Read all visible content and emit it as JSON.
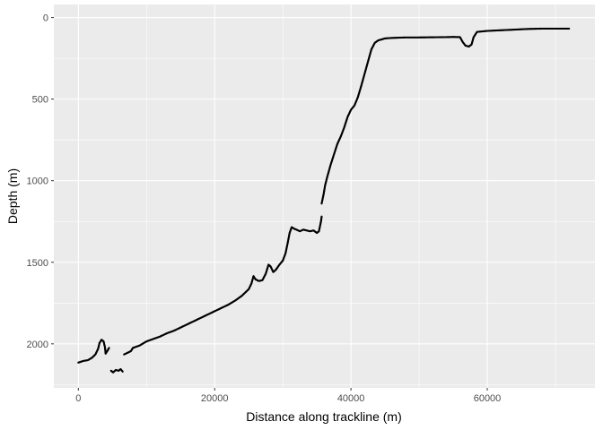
{
  "chart_data": {
    "type": "scatter",
    "xlabel": "Distance along trackline (m)",
    "ylabel": "Depth (m)",
    "xlim": [
      -3600,
      75800
    ],
    "ylim": [
      -80,
      2270
    ],
    "y_reversed": true,
    "x_ticks": [
      0,
      20000,
      40000,
      60000
    ],
    "y_ticks": [
      0,
      500,
      1000,
      1500,
      2000
    ],
    "x_tick_labels": [
      "0",
      "20000",
      "40000",
      "60000"
    ],
    "y_tick_labels": [
      "0",
      "500",
      "1000",
      "1500",
      "2000"
    ],
    "grid": true,
    "panel_background": "#ebebeb",
    "grid_color": "#ffffff",
    "point_color": "#000000",
    "segments": [
      {
        "name": "seg-a",
        "points": [
          [
            0,
            2115
          ],
          [
            700,
            2105
          ],
          [
            1400,
            2100
          ],
          [
            2000,
            2085
          ],
          [
            2500,
            2065
          ],
          [
            2900,
            2030
          ],
          [
            3100,
            1995
          ],
          [
            3400,
            1975
          ],
          [
            3700,
            1985
          ],
          [
            3900,
            2020
          ],
          [
            4000,
            2060
          ],
          [
            4300,
            2040
          ],
          [
            4500,
            2025
          ]
        ]
      },
      {
        "name": "seg-b",
        "points": [
          [
            4800,
            2165
          ],
          [
            5100,
            2175
          ],
          [
            5500,
            2160
          ],
          [
            5900,
            2165
          ],
          [
            6200,
            2155
          ],
          [
            6500,
            2170
          ]
        ]
      },
      {
        "name": "seg-c",
        "points": [
          [
            6700,
            2065
          ],
          [
            7200,
            2055
          ],
          [
            7700,
            2045
          ],
          [
            8000,
            2025
          ],
          [
            9000,
            2010
          ],
          [
            10000,
            1985
          ],
          [
            11000,
            1970
          ],
          [
            12000,
            1955
          ],
          [
            13000,
            1935
          ],
          [
            14000,
            1920
          ],
          [
            15000,
            1900
          ],
          [
            16000,
            1880
          ],
          [
            17000,
            1860
          ],
          [
            18000,
            1840
          ],
          [
            19000,
            1820
          ],
          [
            20000,
            1800
          ],
          [
            21000,
            1780
          ],
          [
            22000,
            1760
          ],
          [
            23000,
            1735
          ],
          [
            24000,
            1705
          ],
          [
            25000,
            1665
          ],
          [
            25400,
            1630
          ],
          [
            25700,
            1585
          ],
          [
            26000,
            1605
          ],
          [
            26500,
            1615
          ],
          [
            27000,
            1610
          ],
          [
            27500,
            1570
          ],
          [
            27900,
            1515
          ],
          [
            28200,
            1525
          ],
          [
            28600,
            1560
          ],
          [
            29000,
            1545
          ],
          [
            29500,
            1515
          ],
          [
            30000,
            1490
          ],
          [
            30400,
            1445
          ],
          [
            30700,
            1385
          ],
          [
            31000,
            1320
          ],
          [
            31300,
            1285
          ],
          [
            31700,
            1295
          ],
          [
            32000,
            1300
          ],
          [
            32500,
            1310
          ],
          [
            33000,
            1300
          ],
          [
            33500,
            1305
          ],
          [
            34000,
            1310
          ],
          [
            34500,
            1305
          ],
          [
            35000,
            1320
          ],
          [
            35300,
            1310
          ],
          [
            35600,
            1250
          ],
          [
            35700,
            1220
          ]
        ]
      },
      {
        "name": "seg-d",
        "points": [
          [
            35700,
            1140
          ],
          [
            36000,
            1080
          ],
          [
            36200,
            1030
          ],
          [
            36500,
            980
          ],
          [
            37000,
            905
          ],
          [
            37500,
            840
          ],
          [
            38000,
            775
          ],
          [
            38500,
            730
          ],
          [
            39000,
            675
          ],
          [
            39500,
            610
          ],
          [
            40000,
            565
          ],
          [
            40500,
            540
          ],
          [
            41000,
            490
          ],
          [
            41500,
            420
          ],
          [
            42000,
            345
          ],
          [
            42500,
            270
          ],
          [
            43000,
            195
          ],
          [
            43500,
            155
          ],
          [
            44000,
            140
          ],
          [
            45000,
            128
          ],
          [
            46000,
            125
          ],
          [
            48000,
            122
          ],
          [
            50000,
            122
          ],
          [
            52000,
            121
          ],
          [
            54000,
            120
          ],
          [
            55000,
            119
          ],
          [
            56000,
            120
          ],
          [
            56400,
            150
          ],
          [
            56800,
            172
          ],
          [
            57300,
            178
          ],
          [
            57700,
            165
          ],
          [
            58000,
            120
          ],
          [
            58500,
            88
          ],
          [
            60000,
            82
          ],
          [
            62000,
            78
          ],
          [
            64000,
            74
          ],
          [
            66000,
            70
          ],
          [
            68000,
            68
          ],
          [
            70000,
            68
          ],
          [
            72000,
            68
          ]
        ]
      }
    ]
  }
}
